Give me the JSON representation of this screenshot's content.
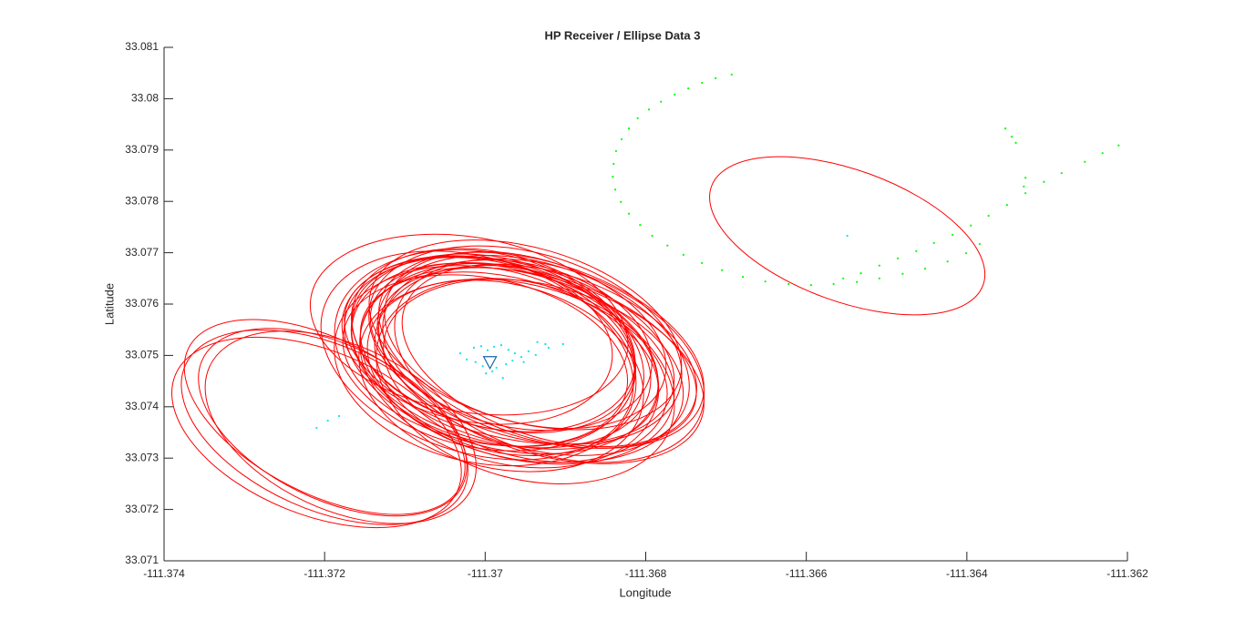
{
  "chart_data": {
    "type": "scatter",
    "title": "HP Receiver / Ellipse Data 3",
    "xlabel": "Longitude",
    "ylabel": "Latitude",
    "xlim": [
      -111.374,
      -111.362
    ],
    "ylim": [
      33.071,
      33.081
    ],
    "xticks": [
      -111.374,
      -111.372,
      -111.37,
      -111.368,
      -111.366,
      -111.364,
      -111.362
    ],
    "yticks": [
      33.071,
      33.072,
      33.073,
      33.074,
      33.075,
      33.076,
      33.077,
      33.078,
      33.079,
      33.08,
      33.081
    ],
    "ellipses": {
      "color": "#ff0000",
      "lon": [
        -111.3698,
        -111.3695,
        -111.37,
        -111.3693,
        -111.3697,
        -111.3701,
        -111.3694,
        -111.3696,
        -111.3699,
        -111.3692,
        -111.3697,
        -111.37,
        -111.3695,
        -111.3698,
        -111.3694,
        -111.3696,
        -111.3701,
        -111.3693,
        -111.3699,
        -111.3697,
        -111.3695,
        -111.3698,
        -111.37,
        -111.3694,
        -111.3696,
        -111.3699,
        -111.3692,
        -111.3697,
        -111.3702,
        -111.3695,
        -111.372,
        -111.3719,
        -111.3721,
        -111.3718,
        -111.372,
        -111.36549
      ],
      "lat": [
        33.075,
        33.0752,
        33.0749,
        33.0751,
        33.0748,
        33.0753,
        33.075,
        33.0747,
        33.0752,
        33.0749,
        33.0751,
        33.0748,
        33.0753,
        33.075,
        33.0747,
        33.0752,
        33.075,
        33.0748,
        33.0751,
        33.0749,
        33.0754,
        33.0746,
        33.0751,
        33.075,
        33.0748,
        33.0753,
        33.075,
        33.0749,
        33.0756,
        33.0745,
        33.0736,
        33.0737,
        33.0735,
        33.0736,
        33.0738,
        33.07733
      ],
      "a": [
        0.0019,
        0.002,
        0.0018,
        0.0021,
        0.0019,
        0.0017,
        0.002,
        0.0019,
        0.0018,
        0.002,
        0.0021,
        0.0019,
        0.0018,
        0.002,
        0.0019,
        0.0017,
        0.002,
        0.0021,
        0.0018,
        0.0019,
        0.002,
        0.0018,
        0.0019,
        0.0021,
        0.002,
        0.0018,
        0.0019,
        0.0017,
        0.002,
        0.0019,
        0.0019,
        0.0018,
        0.0019,
        0.0018,
        0.0019,
        0.0018
      ],
      "b": [
        0.0017,
        0.0018,
        0.0016,
        0.0017,
        0.0019,
        0.0016,
        0.0018,
        0.0017,
        0.0016,
        0.0018,
        0.0017,
        0.0019,
        0.0016,
        0.0018,
        0.0017,
        0.0016,
        0.0019,
        0.0017,
        0.0018,
        0.0016,
        0.0017,
        0.0018,
        0.0019,
        0.0016,
        0.0018,
        0.0017,
        0.0016,
        0.0018,
        0.0017,
        0.0019,
        0.0016,
        0.0015,
        0.0016,
        0.0016,
        0.0015,
        0.00128
      ],
      "angle": [
        -14,
        -16,
        -12,
        -18,
        -15,
        -10,
        -17,
        -13,
        -15,
        -19,
        -14,
        -11,
        -16,
        -15,
        -13,
        -12,
        -17,
        -18,
        -14,
        -15,
        -16,
        -13,
        -12,
        -17,
        -15,
        -14,
        -18,
        -13,
        -10,
        -16,
        -24,
        -26,
        -22,
        -25,
        -27,
        -20
      ]
    },
    "series": [
      {
        "color": "#00ff00",
        "x": [
          -111.36693,
          -111.36713,
          -111.3673,
          -111.36747,
          -111.36764,
          -111.36781,
          -111.36796,
          -111.3681,
          -111.36821,
          -111.3683,
          -111.36837,
          -111.3684,
          -111.36841,
          -111.36838,
          -111.36831,
          -111.36821,
          -111.36807,
          -111.36792,
          -111.36773,
          -111.36753,
          -111.3673,
          -111.36705,
          -111.36679,
          -111.36651,
          -111.36622,
          -111.36594,
          -111.36566,
          -111.36537,
          -111.36509,
          -111.3648,
          -111.36452,
          -111.36424,
          -111.36401,
          -111.36384,
          -111.36211,
          -111.36231,
          -111.36253,
          -111.36282,
          -111.36304,
          -111.36327,
          -111.3635,
          -111.36373,
          -111.36395,
          -111.36418,
          -111.36441,
          -111.36463,
          -111.36486,
          -111.36509,
          -111.36532,
          -111.36554,
          -111.36352,
          -111.36344,
          -111.36339,
          -111.36327,
          -111.36329
        ],
        "y": [
          33.08047,
          33.0804,
          33.08031,
          33.0802,
          33.08008,
          33.07994,
          33.07979,
          33.07962,
          33.07942,
          33.07921,
          33.07898,
          33.07873,
          33.07848,
          33.07823,
          33.07799,
          33.07776,
          33.07754,
          33.07733,
          33.07714,
          33.07696,
          33.0768,
          33.07666,
          33.07653,
          33.07644,
          33.07639,
          33.07637,
          33.07639,
          33.07643,
          33.0765,
          33.07659,
          33.07669,
          33.07683,
          33.07699,
          33.07717,
          33.07909,
          33.07894,
          33.07877,
          33.07855,
          33.07838,
          33.07816,
          33.07793,
          33.07772,
          33.07753,
          33.07735,
          33.07719,
          33.07703,
          33.07689,
          33.07675,
          33.0766,
          33.0765,
          33.07942,
          33.07926,
          33.07914,
          33.07846,
          33.07829
        ]
      },
      {
        "color": "#00e5ee",
        "x": [
          -111.37014,
          -111.37005,
          -111.36997,
          -111.36989,
          -111.3698,
          -111.36971,
          -111.36963,
          -111.36955,
          -111.36946,
          -111.36937,
          -111.36925,
          -111.36921,
          -111.37023,
          -111.37012,
          -111.37003,
          -111.36986,
          -111.36974,
          -111.36966,
          -111.36952,
          -111.36999,
          -111.36991,
          -111.36978,
          -111.37031,
          -111.36935,
          -111.36903,
          -111.3721,
          -111.37196,
          -111.37182,
          -111.36549
        ],
        "y": [
          33.07515,
          33.07518,
          33.0751,
          33.07517,
          33.0752,
          33.07511,
          33.07504,
          33.07497,
          33.07508,
          33.07501,
          33.07522,
          33.07515,
          33.07492,
          33.07487,
          33.07479,
          33.07476,
          33.07483,
          33.0749,
          33.07487,
          33.07465,
          33.07469,
          33.07456,
          33.07504,
          33.07526,
          33.07522,
          33.07359,
          33.07373,
          33.07382,
          33.07733
        ]
      }
    ],
    "marker": {
      "x": -111.36994,
      "y": 33.07487,
      "color": "#1565a8"
    }
  }
}
